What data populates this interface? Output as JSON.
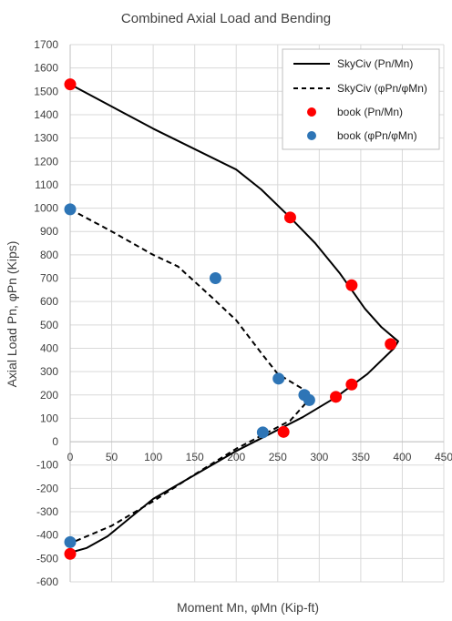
{
  "chart_data": {
    "type": "line",
    "title": "Combined Axial Load and Bending",
    "xlabel": "Moment Mn, φMn (Kip-ft)",
    "ylabel": "Axial Load Pn, φPn (Kips)",
    "xlim": [
      0,
      450
    ],
    "ylim": [
      -600,
      1700
    ],
    "xticks": [
      0,
      50,
      100,
      150,
      200,
      250,
      300,
      350,
      400,
      450
    ],
    "yticks": [
      -600,
      -500,
      -400,
      -300,
      -200,
      -100,
      0,
      100,
      200,
      300,
      400,
      500,
      600,
      700,
      800,
      900,
      1000,
      1100,
      1200,
      1300,
      1400,
      1500,
      1600,
      1700
    ],
    "grid": true,
    "legend_position": "top-right",
    "series": [
      {
        "name": "SkyCiv (Pn/Mn)",
        "style": "solid-line",
        "color": "#000000",
        "x": [
          0,
          100,
          200,
          230,
          265,
          295,
          325,
          355,
          375,
          395,
          390,
          358,
          320,
          280,
          200,
          100,
          45,
          20,
          0
        ],
        "y": [
          1530,
          1340,
          1165,
          1080,
          960,
          850,
          720,
          570,
          490,
          430,
          400,
          290,
          190,
          105,
          -40,
          -245,
          -405,
          -455,
          -475
        ]
      },
      {
        "name": "SkyCiv (φPn/φMn)",
        "style": "dashed-line",
        "color": "#000000",
        "x": [
          0,
          50,
          100,
          130,
          170,
          200,
          230,
          250,
          290,
          285,
          265,
          200,
          150,
          100,
          50,
          0
        ],
        "y": [
          995,
          900,
          800,
          750,
          620,
          520,
          380,
          290,
          205,
          170,
          90,
          -30,
          -140,
          -255,
          -360,
          -435
        ]
      },
      {
        "name": "book (Pn/Mn)",
        "style": "marker",
        "color": "#ff0000",
        "x": [
          0,
          265,
          339,
          386,
          339,
          320,
          257,
          0
        ],
        "y": [
          1530,
          960,
          670,
          418,
          245,
          192,
          42,
          -480
        ]
      },
      {
        "name": "book (φPn/φMn)",
        "style": "marker",
        "color": "#2e75b6",
        "x": [
          0,
          175,
          251,
          282,
          288,
          232,
          0
        ],
        "y": [
          995,
          700,
          270,
          200,
          178,
          40,
          -430
        ]
      }
    ]
  }
}
